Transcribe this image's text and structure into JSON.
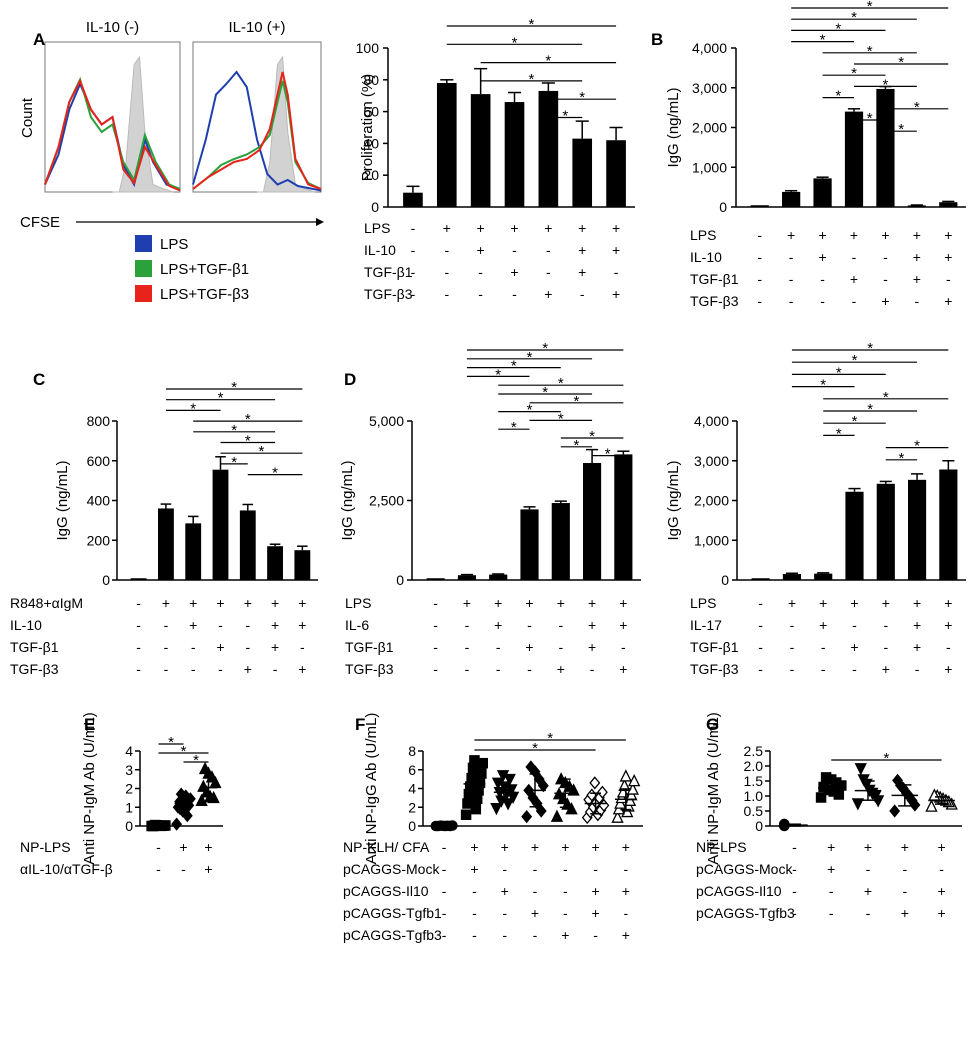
{
  "colors": {
    "lps": "#1f3fb0",
    "tgfb1": "#2aa13a",
    "tgfb3": "#e8231b",
    "control_fill": "#d2d2d2"
  },
  "chart_data": [
    {
      "id": "A-hist",
      "panel": "A",
      "type": "histogram",
      "subtitles": [
        "IL-10 (-)",
        "IL-10 (+)"
      ],
      "ylabel": "Count",
      "xlabel": "CFSE",
      "legend": [
        "LPS",
        "LPS+TGF-β1",
        "LPS+TGF-β3"
      ]
    },
    {
      "id": "A-bar",
      "panel": "A",
      "type": "bar",
      "ylabel": "Proliferation (%)",
      "ylim": [
        0,
        100
      ],
      "yticks": [
        0,
        20,
        40,
        60,
        80,
        100
      ],
      "ytick_labels": [
        "0",
        "20",
        "40",
        "60",
        "80",
        "100"
      ],
      "values": [
        9,
        78,
        71,
        66,
        73,
        43,
        42
      ],
      "errors": [
        4,
        2,
        16,
        6,
        5,
        11,
        8
      ],
      "conditions": [
        {
          "label": "LPS",
          "marks": [
            "-",
            "+",
            "+",
            "+",
            "+",
            "+",
            "+"
          ]
        },
        {
          "label": "IL-10",
          "marks": [
            "-",
            "-",
            "+",
            "-",
            "-",
            "+",
            "+"
          ]
        },
        {
          "label": "TGF-β1",
          "marks": [
            "-",
            "-",
            "-",
            "+",
            "-",
            "+",
            "-"
          ]
        },
        {
          "label": "TGF-β3",
          "marks": [
            "-",
            "-",
            "-",
            "-",
            "+",
            "-",
            "+"
          ]
        }
      ],
      "sig": [
        [
          1,
          6
        ],
        [
          1,
          5
        ],
        [
          2,
          6
        ],
        [
          2,
          5
        ],
        [
          4,
          6
        ],
        [
          4,
          5
        ]
      ]
    },
    {
      "id": "B",
      "panel": "B",
      "type": "bar",
      "ylabel": "IgG (ng/mL)",
      "ylim": [
        0,
        4000
      ],
      "yticks": [
        0,
        1000,
        2000,
        3000,
        4000
      ],
      "ytick_labels": [
        "0",
        "1,000",
        "2,000",
        "3,000",
        "4,000"
      ],
      "values": [
        0,
        380,
        720,
        2400,
        2970,
        40,
        120
      ],
      "errors": [
        0,
        30,
        30,
        70,
        60,
        10,
        20
      ],
      "conditions": [
        {
          "label": "LPS",
          "marks": [
            "-",
            "+",
            "+",
            "+",
            "+",
            "+",
            "+"
          ]
        },
        {
          "label": "IL-10",
          "marks": [
            "-",
            "-",
            "+",
            "-",
            "-",
            "+",
            "+"
          ]
        },
        {
          "label": "TGF-β1",
          "marks": [
            "-",
            "-",
            "-",
            "+",
            "-",
            "+",
            "-"
          ]
        },
        {
          "label": "TGF-β3",
          "marks": [
            "-",
            "-",
            "-",
            "-",
            "+",
            "-",
            "+"
          ]
        }
      ],
      "sig": [
        [
          1,
          6
        ],
        [
          1,
          5
        ],
        [
          1,
          4
        ],
        [
          1,
          3
        ],
        [
          2,
          5
        ],
        [
          3,
          6
        ],
        [
          2,
          4
        ],
        [
          3,
          5
        ],
        [
          2,
          3
        ],
        [
          4,
          6
        ],
        [
          3,
          4
        ],
        [
          4,
          5
        ]
      ]
    },
    {
      "id": "C",
      "panel": "C",
      "type": "bar",
      "ylabel": "IgG (ng/mL)",
      "ylim": [
        0,
        800
      ],
      "yticks": [
        0,
        200,
        400,
        600,
        800
      ],
      "ytick_labels": [
        "0",
        "200",
        "400",
        "600",
        "800"
      ],
      "values": [
        0,
        360,
        285,
        555,
        350,
        170,
        150
      ],
      "errors": [
        0,
        22,
        35,
        65,
        30,
        10,
        20
      ],
      "conditions": [
        {
          "label": "R848+αIgM",
          "marks": [
            "-",
            "+",
            "+",
            "+",
            "+",
            "+",
            "+"
          ]
        },
        {
          "label": "IL-10",
          "marks": [
            "-",
            "-",
            "+",
            "-",
            "-",
            "+",
            "+"
          ]
        },
        {
          "label": "TGF-β1",
          "marks": [
            "-",
            "-",
            "-",
            "+",
            "-",
            "+",
            "-"
          ]
        },
        {
          "label": "TGF-β3",
          "marks": [
            "-",
            "-",
            "-",
            "-",
            "+",
            "-",
            "+"
          ]
        }
      ],
      "sig": [
        [
          1,
          6
        ],
        [
          1,
          5
        ],
        [
          1,
          3
        ],
        [
          2,
          6
        ],
        [
          2,
          5
        ],
        [
          3,
          5
        ],
        [
          3,
          6
        ],
        [
          3,
          4
        ],
        [
          4,
          6
        ]
      ]
    },
    {
      "id": "D-IL6",
      "panel": "D",
      "type": "bar",
      "ylabel": "IgG (ng/mL)",
      "ylim": [
        0,
        5000
      ],
      "yticks": [
        0,
        2500,
        5000
      ],
      "ytick_labels": [
        "0",
        "2,500",
        "5,000"
      ],
      "values": [
        0,
        150,
        170,
        2220,
        2420,
        3680,
        3950
      ],
      "errors": [
        0,
        20,
        20,
        80,
        60,
        420,
        100
      ],
      "conditions": [
        {
          "label": "LPS",
          "marks": [
            "-",
            "+",
            "+",
            "+",
            "+",
            "+",
            "+"
          ]
        },
        {
          "label": "IL-6",
          "marks": [
            "-",
            "-",
            "+",
            "-",
            "-",
            "+",
            "+"
          ]
        },
        {
          "label": "TGF-β1",
          "marks": [
            "-",
            "-",
            "-",
            "+",
            "-",
            "+",
            "-"
          ]
        },
        {
          "label": "TGF-β3",
          "marks": [
            "-",
            "-",
            "-",
            "-",
            "+",
            "-",
            "+"
          ]
        }
      ],
      "sig": [
        [
          1,
          6
        ],
        [
          1,
          5
        ],
        [
          1,
          4
        ],
        [
          1,
          3
        ],
        [
          2,
          6
        ],
        [
          2,
          5
        ],
        [
          3,
          6
        ],
        [
          2,
          4
        ],
        [
          3,
          5
        ],
        [
          2,
          3
        ],
        [
          4,
          6
        ],
        [
          4,
          5
        ],
        [
          5,
          6
        ]
      ]
    },
    {
      "id": "D-IL17",
      "panel": "D",
      "type": "bar",
      "ylabel": "IgG (ng/mL)",
      "ylim": [
        0,
        4000
      ],
      "yticks": [
        0,
        1000,
        2000,
        3000,
        4000
      ],
      "ytick_labels": [
        "0",
        "1,000",
        "2,000",
        "3,000",
        "4,000"
      ],
      "values": [
        0,
        150,
        160,
        2220,
        2420,
        2520,
        2780
      ],
      "errors": [
        0,
        20,
        20,
        80,
        60,
        150,
        220
      ],
      "conditions": [
        {
          "label": "LPS",
          "marks": [
            "-",
            "+",
            "+",
            "+",
            "+",
            "+",
            "+"
          ]
        },
        {
          "label": "IL-17",
          "marks": [
            "-",
            "-",
            "+",
            "-",
            "-",
            "+",
            "+"
          ]
        },
        {
          "label": "TGF-β1",
          "marks": [
            "-",
            "-",
            "-",
            "+",
            "-",
            "+",
            "-"
          ]
        },
        {
          "label": "TGF-β3",
          "marks": [
            "-",
            "-",
            "-",
            "-",
            "+",
            "-",
            "+"
          ]
        }
      ],
      "sig": [
        [
          1,
          6
        ],
        [
          1,
          5
        ],
        [
          1,
          4
        ],
        [
          1,
          3
        ],
        [
          2,
          6
        ],
        [
          2,
          5
        ],
        [
          2,
          4
        ],
        [
          2,
          3
        ],
        [
          4,
          6
        ],
        [
          4,
          5
        ]
      ]
    },
    {
      "id": "E",
      "panel": "E",
      "type": "scatter",
      "ylabel": "Anti NP-IgM Ab (U/mL)",
      "ylim": [
        0,
        4
      ],
      "yticks": [
        0,
        1,
        2,
        3,
        4
      ],
      "ytick_labels": [
        "0",
        "1",
        "2",
        "3",
        "4"
      ],
      "groups": [
        {
          "marker": "square",
          "filled": true,
          "mean": 0.02,
          "sd": 0.02,
          "points": [
            0.0,
            0.02,
            0.01,
            0.04,
            0.0,
            0.03,
            0.01,
            0.02,
            0.05
          ]
        },
        {
          "marker": "diamond",
          "filled": true,
          "mean": 1.2,
          "sd": 0.55,
          "points": [
            0.1,
            0.55,
            0.8,
            1.0,
            1.1,
            1.2,
            1.3,
            1.45,
            1.6,
            1.7
          ]
        },
        {
          "marker": "triangle",
          "filled": true,
          "mean": 2.05,
          "sd": 0.75,
          "points": [
            1.35,
            1.5,
            1.55,
            1.8,
            2.1,
            2.3,
            2.6,
            2.8,
            3.05
          ]
        }
      ],
      "conditions": [
        {
          "label": "NP-LPS",
          "marks": [
            "-",
            "+",
            "+"
          ]
        },
        {
          "label": "αIL-10/αTGF-β",
          "marks": [
            "-",
            "-",
            "+"
          ]
        }
      ],
      "sig": [
        [
          0,
          1
        ],
        [
          0,
          2
        ],
        [
          1,
          2
        ]
      ]
    },
    {
      "id": "F",
      "panel": "F",
      "type": "scatter",
      "ylabel": "Anti NP-IgG Ab (U/mL)",
      "ylim": [
        0,
        8
      ],
      "yticks": [
        0,
        2,
        4,
        6,
        8
      ],
      "ytick_labels": [
        "0",
        "2",
        "4",
        "6",
        "8"
      ],
      "groups": [
        {
          "marker": "circle",
          "filled": true,
          "mean": 0.0,
          "sd": 0.05,
          "points": [
            0.0,
            0.05,
            0.0,
            0.03,
            0.0,
            0.02,
            0.04,
            0.0
          ]
        },
        {
          "marker": "square",
          "filled": true,
          "mean": 4.5,
          "sd": 1.9,
          "points": [
            1.2,
            1.8,
            2.4,
            2.9,
            3.4,
            3.8,
            4.2,
            4.6,
            5.1,
            5.6,
            6.2,
            6.7,
            7.0
          ]
        },
        {
          "marker": "triangle-down",
          "filled": true,
          "mean": 3.6,
          "sd": 1.0,
          "points": [
            1.9,
            2.4,
            2.7,
            3.1,
            3.4,
            3.6,
            3.9,
            4.2,
            4.6,
            5.0,
            5.4
          ]
        },
        {
          "marker": "diamond",
          "filled": true,
          "mean": 3.8,
          "sd": 1.75,
          "points": [
            1.0,
            1.6,
            2.4,
            3.0,
            3.8,
            4.3,
            5.0,
            5.8,
            6.3
          ]
        },
        {
          "marker": "triangle",
          "filled": true,
          "mean": 3.5,
          "sd": 1.5,
          "points": [
            1.0,
            1.8,
            2.3,
            2.9,
            3.4,
            3.8,
            4.2,
            4.6,
            5.0
          ]
        },
        {
          "marker": "diamond",
          "filled": false,
          "mean": 2.4,
          "sd": 1.1,
          "points": [
            0.9,
            1.2,
            1.5,
            1.7,
            2.0,
            2.2,
            2.5,
            2.8,
            3.0,
            3.3,
            3.6,
            4.6
          ]
        },
        {
          "marker": "triangle",
          "filled": false,
          "mean": 2.85,
          "sd": 1.1,
          "points": [
            0.9,
            1.5,
            1.8,
            2.1,
            2.4,
            2.7,
            3.0,
            3.3,
            3.6,
            3.9,
            4.3,
            4.8,
            5.3
          ]
        }
      ],
      "conditions": [
        {
          "label": "NP-KLH/ CFA",
          "marks": [
            "-",
            "+",
            "+",
            "+",
            "+",
            "+",
            "+"
          ]
        },
        {
          "label": "pCAGGS-Mock",
          "marks": [
            "-",
            "+",
            "-",
            "-",
            "-",
            "-",
            "-"
          ]
        },
        {
          "label": "pCAGGS-Il10",
          "marks": [
            "-",
            "-",
            "+",
            "-",
            "-",
            "+",
            "+"
          ]
        },
        {
          "label": "pCAGGS-Tgfb1",
          "marks": [
            "-",
            "-",
            "-",
            "+",
            "-",
            "+",
            "-"
          ]
        },
        {
          "label": "pCAGGS-Tgfb3",
          "marks": [
            "-",
            "-",
            "-",
            "-",
            "+",
            "-",
            "+"
          ]
        }
      ],
      "sig": [
        [
          1,
          6
        ],
        [
          1,
          5
        ]
      ]
    },
    {
      "id": "G",
      "panel": "G",
      "type": "scatter",
      "ylabel": "Anti NP-IgM Ab (U/mL)",
      "ylim": [
        0,
        2.5
      ],
      "yticks": [
        0,
        0.5,
        1.0,
        1.5,
        2.0,
        2.5
      ],
      "ytick_labels": [
        "0",
        "0.5",
        "1.0",
        "1.5",
        "2.0",
        "2.5"
      ],
      "groups": [
        {
          "marker": "circle",
          "filled": true,
          "mean": 0.03,
          "sd": 0.03,
          "points": [
            0.0,
            0.02,
            0.05,
            0.03,
            0.07,
            0.01,
            0.04
          ]
        },
        {
          "marker": "square",
          "filled": true,
          "mean": 1.27,
          "sd": 0.2,
          "points": [
            0.95,
            1.05,
            1.15,
            1.2,
            1.3,
            1.35,
            1.45,
            1.55,
            1.62
          ]
        },
        {
          "marker": "triangle-down",
          "filled": true,
          "mean": 1.18,
          "sd": 0.32,
          "points": [
            0.75,
            0.85,
            1.0,
            1.1,
            1.2,
            1.4,
            1.55,
            1.92
          ]
        },
        {
          "marker": "diamond",
          "filled": true,
          "mean": 1.02,
          "sd": 0.35,
          "points": [
            0.5,
            0.7,
            0.85,
            1.0,
            1.1,
            1.25,
            1.35,
            1.52
          ]
        },
        {
          "marker": "triangle",
          "filled": false,
          "mean": 0.85,
          "sd": 0.12,
          "points": [
            0.65,
            0.72,
            0.8,
            0.85,
            0.9,
            0.95,
            1.0,
            1.02
          ]
        }
      ],
      "conditions": [
        {
          "label": "NP-LPS",
          "marks": [
            "-",
            "+",
            "+",
            "+",
            "+"
          ]
        },
        {
          "label": "pCAGGS-Mock",
          "marks": [
            "-",
            "+",
            "-",
            "-",
            "-"
          ]
        },
        {
          "label": "pCAGGS-Il10",
          "marks": [
            "-",
            "-",
            "+",
            "-",
            "+"
          ]
        },
        {
          "label": "pCAGGS-Tgfb3",
          "marks": [
            "-",
            "-",
            "-",
            "+",
            "+"
          ]
        }
      ],
      "sig": [
        [
          1,
          4
        ]
      ]
    }
  ]
}
